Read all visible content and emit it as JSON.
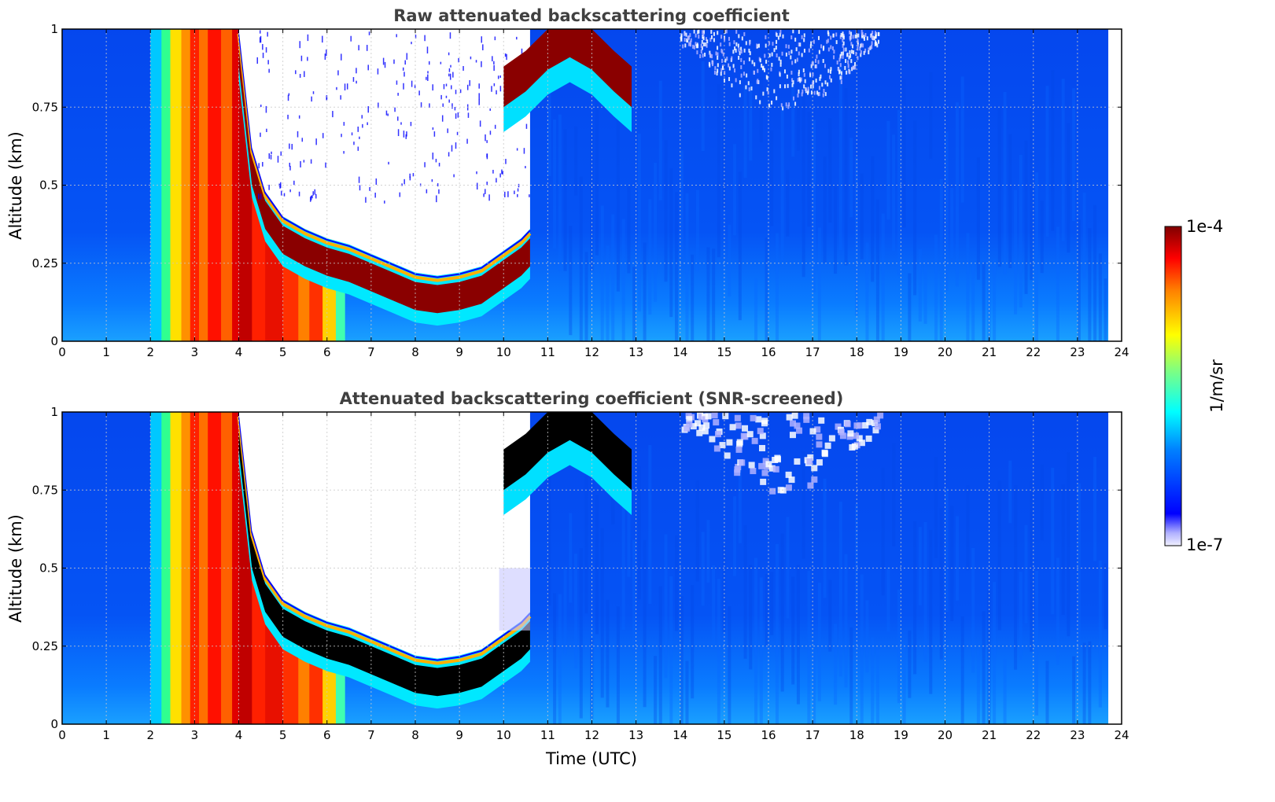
{
  "chart_data": [
    {
      "type": "heatmap",
      "title": "Raw attenuated backscattering coefficient",
      "xlabel": "",
      "ylabel": "Altitude (km)",
      "xlim": [
        0,
        24
      ],
      "ylim": [
        0,
        1
      ],
      "x_ticks": [
        "0",
        "1",
        "2",
        "3",
        "4",
        "5",
        "6",
        "7",
        "8",
        "9",
        "10",
        "11",
        "12",
        "13",
        "14",
        "15",
        "16",
        "17",
        "18",
        "19",
        "20",
        "21",
        "22",
        "23",
        "24"
      ],
      "y_ticks": [
        "0",
        "0.25",
        "0.5",
        "0.75",
        "1"
      ],
      "grid": true,
      "data_end_hour": 23.7,
      "layer_top_km": [
        [
          0,
          1.0
        ],
        [
          4.0,
          1.0
        ],
        [
          4.4,
          0.55
        ],
        [
          5.0,
          0.38
        ],
        [
          5.5,
          0.33
        ],
        [
          6.0,
          0.3
        ],
        [
          6.5,
          0.28
        ],
        [
          7.0,
          0.24
        ],
        [
          7.5,
          0.21
        ],
        [
          8.0,
          0.18
        ],
        [
          8.5,
          0.17
        ],
        [
          9.0,
          0.17
        ],
        [
          9.5,
          0.19
        ],
        [
          10.0,
          0.25
        ],
        [
          10.5,
          0.28
        ],
        [
          11.0,
          0.3
        ]
      ],
      "elevated_layer_km": [
        [
          10.0,
          0.8
        ],
        [
          10.5,
          0.85
        ],
        [
          11.0,
          0.92
        ],
        [
          11.5,
          0.96
        ],
        [
          12.0,
          0.92
        ],
        [
          12.5,
          0.85
        ],
        [
          12.9,
          0.8
        ]
      ]
    },
    {
      "type": "heatmap",
      "title": "Attenuated backscattering coefficient (SNR-screened)",
      "xlabel": "Time (UTC)",
      "ylabel": "Altitude (km)",
      "xlim": [
        0,
        24
      ],
      "ylim": [
        0,
        1
      ],
      "x_ticks": [
        "0",
        "1",
        "2",
        "3",
        "4",
        "5",
        "6",
        "7",
        "8",
        "9",
        "10",
        "11",
        "12",
        "13",
        "14",
        "15",
        "16",
        "17",
        "18",
        "19",
        "20",
        "21",
        "22",
        "23",
        "24"
      ],
      "y_ticks": [
        "0",
        "0.25",
        "0.5",
        "0.75",
        "1"
      ],
      "grid": true,
      "data_end_hour": 23.7,
      "saturated_color": "#000000"
    }
  ],
  "colorbar": {
    "label": "1/m/sr",
    "max_label": "1e-4",
    "min_label": "1e-7",
    "colormap": "jet",
    "colors": [
      "#e8e8ff",
      "#0000ff",
      "#0080ff",
      "#00ffff",
      "#80ff80",
      "#ffff00",
      "#ff8000",
      "#ff0000",
      "#800000"
    ]
  }
}
